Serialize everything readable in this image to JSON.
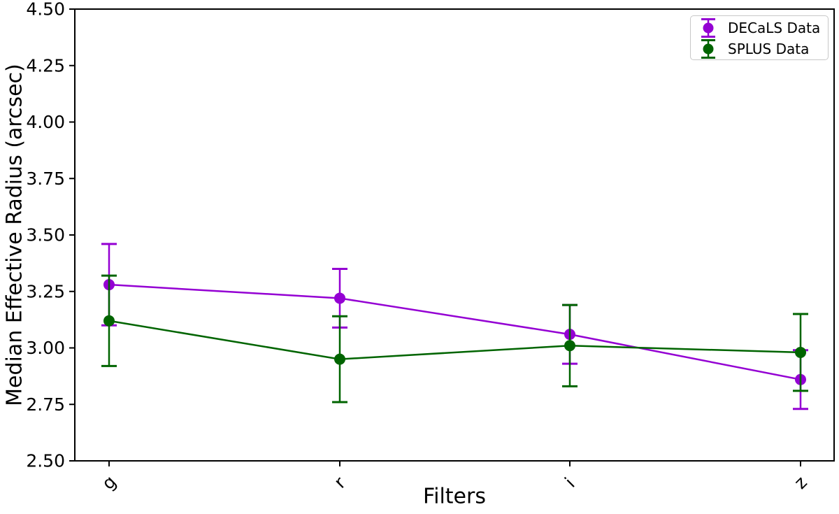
{
  "chart_data": {
    "type": "line",
    "subtype": "errorbar",
    "title": "",
    "xlabel": "Filters",
    "ylabel": "Median Effective Radius (arcsec)",
    "categories": [
      "g",
      "r",
      "i",
      "z"
    ],
    "ylim": [
      2.5,
      4.5
    ],
    "ytick_labels": [
      "2.50",
      "2.75",
      "3.00",
      "3.25",
      "3.50",
      "3.75",
      "4.00",
      "4.25",
      "4.50"
    ],
    "grid": false,
    "legend_position": "upper right",
    "background_color": "#ffffff",
    "axis_color": "#000000",
    "series": [
      {
        "name": "DECaLS Data",
        "color": "#9400d3",
        "marker": "circle",
        "values": [
          3.28,
          3.22,
          3.06,
          2.86
        ],
        "yerr": [
          0.18,
          0.13,
          0.13,
          0.13
        ]
      },
      {
        "name": "SPLUS Data",
        "color": "#006400",
        "marker": "circle",
        "values": [
          3.12,
          2.95,
          3.01,
          2.98
        ],
        "yerr": [
          0.2,
          0.19,
          0.18,
          0.17
        ]
      }
    ]
  }
}
